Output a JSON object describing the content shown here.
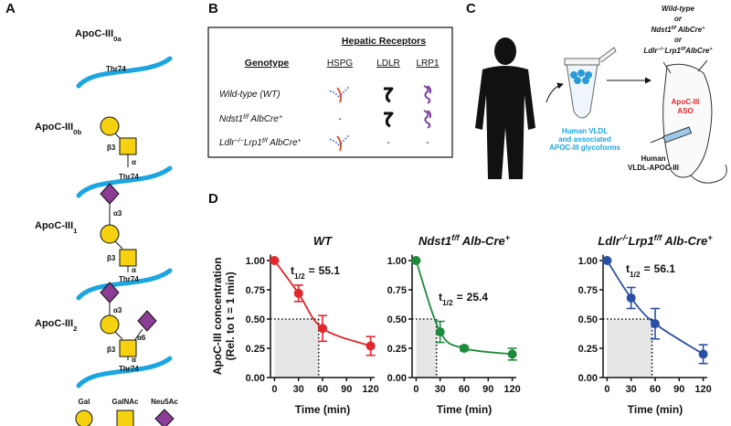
{
  "panels": {
    "A": {
      "letter": "A",
      "forms": [
        {
          "name": [
            {
              "text": "ApoC-III"
            },
            {
              "text": "0a",
              "style": "sub"
            }
          ],
          "site": "Thr74"
        },
        {
          "name": [
            {
              "text": "ApoC-III"
            },
            {
              "text": "0b",
              "style": "sub"
            }
          ],
          "site": "Thr74",
          "linkages": [
            "β3",
            "α"
          ]
        },
        {
          "name": [
            {
              "text": "ApoC-III"
            },
            {
              "text": "1",
              "style": "sub"
            }
          ],
          "site": "Thr74",
          "linkages": [
            "α3",
            "β3",
            "α"
          ]
        },
        {
          "name": [
            {
              "text": "ApoC-III"
            },
            {
              "text": "2",
              "style": "sub"
            }
          ],
          "site": "Thr74",
          "linkages": [
            "α3",
            "β3",
            "α6",
            "α"
          ]
        }
      ],
      "legend": [
        "Gal",
        "GalNAc",
        "Neu5Ac"
      ]
    },
    "B": {
      "letter": "B",
      "header": "Hepatic Receptors",
      "genotype_header": "Genotype",
      "receptors": [
        "HSPG",
        "LDLR",
        "LRP1"
      ],
      "rows": [
        {
          "genotype": [
            {
              "text": "Wild-type (WT)"
            }
          ],
          "cells": [
            null,
            null,
            null
          ]
        },
        {
          "genotype": [
            {
              "text": "Ndst1"
            },
            {
              "text": "f/f",
              "style": "sup"
            },
            {
              "text": " AlbCre"
            },
            {
              "text": "+",
              "style": "sup"
            }
          ],
          "cells": [
            "-",
            null,
            null
          ]
        },
        {
          "genotype": [
            {
              "text": "Ldlr"
            },
            {
              "text": "−/−",
              "style": "sup"
            },
            {
              "text": "Lrp1"
            },
            {
              "text": "f/f",
              "style": "sup"
            },
            {
              "text": " AlbCre"
            },
            {
              "text": "+",
              "style": "sup"
            }
          ],
          "cells": [
            null,
            "-",
            "-"
          ]
        }
      ]
    },
    "C": {
      "letter": "C",
      "sample": [
        "Human VLDL",
        "and associated",
        "APOC-III glycoforms"
      ],
      "mice": {
        "wt": "Wild-type",
        "or": [
          "or",
          "or"
        ],
        "ndst1": [
          {
            "text": "Ndst1"
          },
          {
            "text": "f/f",
            "style": "sup"
          },
          {
            "text": " AlbCre"
          },
          {
            "text": "+",
            "style": "sup"
          }
        ],
        "ldlr": [
          {
            "text": "Ldlr"
          },
          {
            "text": "−/−",
            "style": "sup"
          },
          {
            "text": "Lrp1"
          },
          {
            "text": "f/f",
            "style": "sup"
          },
          {
            "text": "AlbCre"
          },
          {
            "text": "+",
            "style": "sup"
          }
        ]
      },
      "treatment": [
        "ApoC-III",
        "ASO"
      ],
      "injected": [
        "Human",
        "VLDL-APOC-III"
      ]
    },
    "D": {
      "letter": "D"
    }
  },
  "chart_data": [
    {
      "type": "line",
      "title": [
        {
          "text": "WT"
        }
      ],
      "ylabel": [
        "ApoC-III concentration",
        "(Rel. to t = 1 min)"
      ],
      "xlabel": "Time (min)",
      "x": [
        0,
        30,
        60,
        120
      ],
      "series": [
        {
          "color": "#e3262b",
          "values": [
            1.0,
            0.72,
            0.42,
            0.27
          ],
          "errors": [
            0,
            0.07,
            0.11,
            0.08
          ]
        }
      ],
      "halflife": {
        "symbol": "t",
        "sub": "1/2",
        "eq": "=",
        "value": 55.1
      },
      "xlim": [
        -5,
        125
      ],
      "ylim": [
        0,
        1.05
      ],
      "xticks": [
        0,
        30,
        60,
        90,
        120
      ],
      "yticks": [
        {
          "value": 0,
          "label": "0.00"
        },
        {
          "value": 0.25,
          "label": "0.25"
        },
        {
          "value": 0.5,
          "label": "0.50"
        },
        {
          "value": 0.75,
          "label": "0.75"
        },
        {
          "value": 1,
          "label": "1.00"
        }
      ]
    },
    {
      "type": "line",
      "title": [
        {
          "text": "Ndst1"
        },
        {
          "text": "f/f",
          "style": "sup"
        },
        {
          "text": " Alb-Cre"
        },
        {
          "text": "+",
          "style": "sup"
        }
      ],
      "xlabel": "Time (min)",
      "x": [
        0,
        30,
        60,
        120
      ],
      "series": [
        {
          "color": "#1e8a3c",
          "values": [
            1.0,
            0.39,
            0.25,
            0.2
          ],
          "errors": [
            0,
            0.09,
            0.02,
            0.05
          ]
        }
      ],
      "halflife": {
        "symbol": "t",
        "sub": "1/2",
        "eq": "=",
        "value": 25.4
      },
      "xlim": [
        -5,
        125
      ],
      "ylim": [
        0,
        1.05
      ],
      "xticks": [
        0,
        30,
        60,
        90,
        120
      ],
      "yticks": [
        {
          "value": 0,
          "label": "0.00"
        },
        {
          "value": 0.25,
          "label": "0.25"
        },
        {
          "value": 0.5,
          "label": "0.50"
        },
        {
          "value": 0.75,
          "label": "0.75"
        },
        {
          "value": 1,
          "label": "1.00"
        }
      ]
    },
    {
      "type": "line",
      "title": [
        {
          "text": "Ldlr"
        },
        {
          "text": "-/-",
          "style": "sup"
        },
        {
          "text": "Lrp1"
        },
        {
          "text": "f/f",
          "style": "sup"
        },
        {
          "text": " Alb-Cre"
        },
        {
          "text": "+",
          "style": "sup"
        }
      ],
      "xlabel": "Time (min)",
      "x": [
        0,
        30,
        60,
        120
      ],
      "series": [
        {
          "color": "#2b4ea6",
          "values": [
            1.0,
            0.68,
            0.46,
            0.2
          ],
          "errors": [
            0,
            0.09,
            0.13,
            0.08
          ]
        }
      ],
      "halflife": {
        "symbol": "t",
        "sub": "1/2",
        "eq": "=",
        "value": 56.1
      },
      "xlim": [
        -5,
        125
      ],
      "ylim": [
        0,
        1.05
      ],
      "xticks": [
        0,
        30,
        60,
        90,
        120
      ],
      "yticks": [
        {
          "value": 0,
          "label": "0.00"
        },
        {
          "value": 0.25,
          "label": "0.25"
        },
        {
          "value": 0.5,
          "label": "0.50"
        },
        {
          "value": 0.75,
          "label": "0.75"
        },
        {
          "value": 1,
          "label": "1.00"
        }
      ]
    }
  ]
}
